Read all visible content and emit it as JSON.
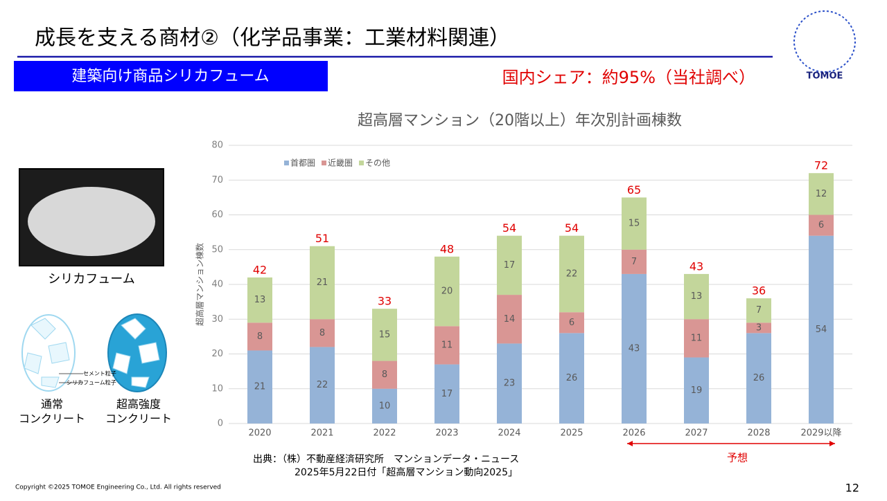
{
  "slide": {
    "title": "成長を支える商材②（化学品事業：工業材料関連）",
    "badge": "建築向け商品シリカフューム",
    "share": "国内シェア：約95%（当社調べ）",
    "logo": "TOMOE",
    "photo_caption": "シリカフューム",
    "cement_label": "セメント粒子",
    "silica_label": "シリカフューム粒子",
    "normal_label": [
      "通常",
      "コンクリート"
    ],
    "high_label": [
      "超高強度",
      "コンクリート"
    ],
    "source": [
      "出典：（株）不動産経済研究所　マンションデータ・ニュース",
      "2025年5月22日付「超高層マンション動向2025」"
    ],
    "forecast": "予想",
    "copyright": "Copyright ©2025 TOMOE Engineering Co., Ltd. All rights reserved",
    "page_number": "12"
  },
  "chart_data": {
    "type": "stacked_bar",
    "title": "超高層マンション（20階以上）年次別計画棟数",
    "y_label": "超高層マンション棟数",
    "categories": [
      "2020",
      "2021",
      "2022",
      "2023",
      "2024",
      "2025",
      "2026",
      "2027",
      "2028",
      "2029以降"
    ],
    "series": [
      {
        "name": "首都圏",
        "color": "#95b3d7",
        "values": [
          21,
          22,
          10,
          17,
          23,
          26,
          43,
          19,
          26,
          54
        ]
      },
      {
        "name": "近畿圏",
        "color": "#d99694",
        "values": [
          8,
          8,
          8,
          11,
          14,
          6,
          7,
          11,
          3,
          6
        ]
      },
      {
        "name": "その他",
        "color": "#c3d69b",
        "values": [
          13,
          21,
          15,
          20,
          17,
          22,
          15,
          13,
          7,
          12
        ]
      }
    ],
    "totals": [
      42,
      51,
      33,
      48,
      54,
      54,
      65,
      43,
      36,
      72
    ],
    "totals_color": "#e00000",
    "ylim": [
      0,
      80
    ],
    "yticks": [
      0,
      10,
      20,
      30,
      40,
      50,
      60,
      70,
      80
    ],
    "grid": true
  }
}
